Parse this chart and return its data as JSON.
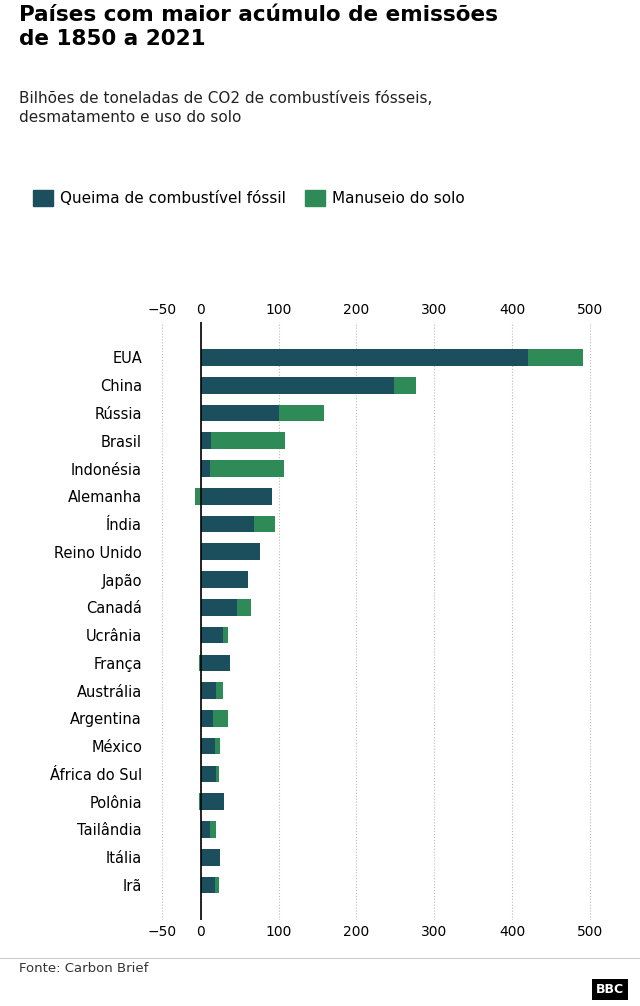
{
  "title": "Países com maior acúmulo de emissões\nde 1850 a 2021",
  "subtitle": "Bilhões de toneladas de CO2 de combustíveis fósseis,\ndesmatamento e uso do solo",
  "source": "Fonte: Carbon Brief",
  "legend1": "Queima de combustível fóssil",
  "legend2": "Manuseio do solo",
  "color_fossil": "#1b4f5e",
  "color_land": "#2e8b57",
  "background": "#ffffff",
  "countries": [
    "EUA",
    "China",
    "Rússia",
    "Brasil",
    "Indonésia",
    "Alemanha",
    "Índia",
    "Reino Unido",
    "Japão",
    "Canadá",
    "Ucrânia",
    "França",
    "Austrália",
    "Argentina",
    "México",
    "África do Sul",
    "Polônia",
    "Tailândia",
    "Itália",
    "Irã"
  ],
  "fossil": [
    421,
    248,
    100,
    13,
    12,
    92,
    68,
    76,
    60,
    46,
    28,
    37,
    20,
    15,
    18,
    19,
    30,
    12,
    24,
    18
  ],
  "land": [
    71,
    28,
    58,
    95,
    95,
    -8,
    27,
    0,
    0,
    18,
    7,
    -2,
    9,
    20,
    7,
    4,
    -2,
    8,
    0,
    5
  ],
  "xlim_min": -65,
  "xlim_max": 540,
  "xticks": [
    -50,
    0,
    100,
    200,
    300,
    400,
    500
  ],
  "fig_width": 6.4,
  "fig_height": 10.06,
  "dpi": 100
}
